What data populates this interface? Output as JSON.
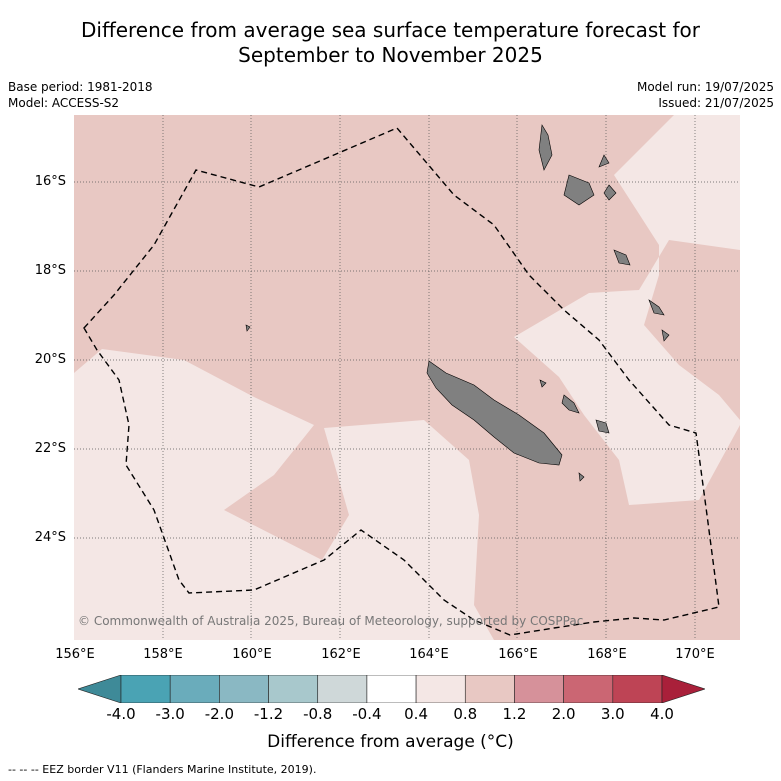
{
  "title": {
    "line1": "Difference from average sea surface temperature forecast for",
    "line2": "September to November 2025"
  },
  "meta": {
    "base_period": "Base period: 1981-2018",
    "model": "Model: ACCESS-S2",
    "model_run": "Model run: 19/07/2025",
    "issued": "Issued: 21/07/2025"
  },
  "map": {
    "y_ticks": [
      "16°S",
      "18°S",
      "20°S",
      "22°S",
      "24°S"
    ],
    "x_ticks": [
      "156°E",
      "158°E",
      "160°E",
      "162°E",
      "164°E",
      "166°E",
      "168°E",
      "170°E"
    ],
    "copyright": "© Commonwealth of Australia 2025, Bureau of Meteorology, supported by COSPPac",
    "colors": {
      "warm_0_8_to_1_2": "#e8c8c3",
      "warm_0_4_to_0_8": "#f4e7e5",
      "land": "#808080",
      "grid": "#555555"
    }
  },
  "colorbar": {
    "labels": [
      "-4.0",
      "-3.0",
      "-2.0",
      "-1.2",
      "-0.8",
      "-0.4",
      "0.4",
      "0.8",
      "1.2",
      "2.0",
      "3.0",
      "4.0"
    ],
    "colors": [
      "#3e8a98",
      "#4aa3b4",
      "#6aacbb",
      "#8ab8c3",
      "#a8c8cc",
      "#cfd8d9",
      "#ffffff",
      "#f4e7e5",
      "#e8c8c3",
      "#d6919a",
      "#cb6673",
      "#be4455",
      "#a9203a"
    ],
    "title": "Difference from average (°C)"
  },
  "footer": "--  --  -- EEZ border V11 (Flanders Marine Institute, 2019)."
}
